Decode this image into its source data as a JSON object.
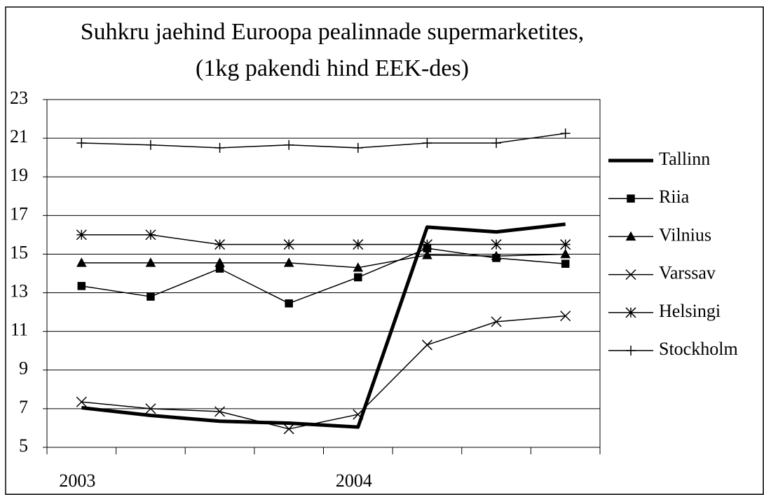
{
  "chart_data": {
    "type": "line",
    "title": [
      "Suhkru jaehind Euroopa pealinnade supermarketites,",
      "(1kg pakendi hind EEK-des)"
    ],
    "categories": [
      "2003",
      null,
      null,
      null,
      "2004",
      null,
      null,
      null
    ],
    "series": [
      {
        "name": "Tallinn",
        "color": "#000000",
        "marker": "none",
        "line_width": 5,
        "values": [
          7.05,
          6.65,
          6.35,
          6.25,
          6.05,
          16.4,
          16.15,
          16.55
        ]
      },
      {
        "name": "Riia",
        "color": "#000000",
        "marker": "square",
        "line_width": 1.5,
        "values": [
          13.35,
          12.8,
          14.25,
          12.45,
          13.8,
          15.3,
          14.8,
          14.5
        ]
      },
      {
        "name": "Vilnius",
        "color": "#000000",
        "marker": "triangle",
        "line_width": 1.5,
        "values": [
          14.55,
          14.55,
          14.55,
          14.55,
          14.3,
          14.95,
          14.9,
          15.0
        ]
      },
      {
        "name": "Varssav",
        "color": "#000000",
        "marker": "x",
        "line_width": 1.5,
        "values": [
          7.35,
          7.0,
          6.85,
          5.95,
          6.7,
          10.3,
          11.5,
          11.8
        ]
      },
      {
        "name": "Helsingi",
        "color": "#000000",
        "marker": "asterisk",
        "line_width": 1.5,
        "values": [
          16.0,
          16.0,
          15.5,
          15.5,
          15.5,
          15.5,
          15.5,
          15.5
        ]
      },
      {
        "name": "Stockholm",
        "color": "#000000",
        "marker": "plus",
        "line_width": 1.5,
        "values": [
          20.75,
          20.65,
          20.5,
          20.65,
          20.5,
          20.75,
          20.75,
          21.25
        ]
      }
    ],
    "ylim": [
      5,
      23
    ],
    "yticks": [
      5,
      7,
      9,
      11,
      13,
      15,
      17,
      19,
      21,
      23
    ],
    "grid": true,
    "legend": "right"
  }
}
